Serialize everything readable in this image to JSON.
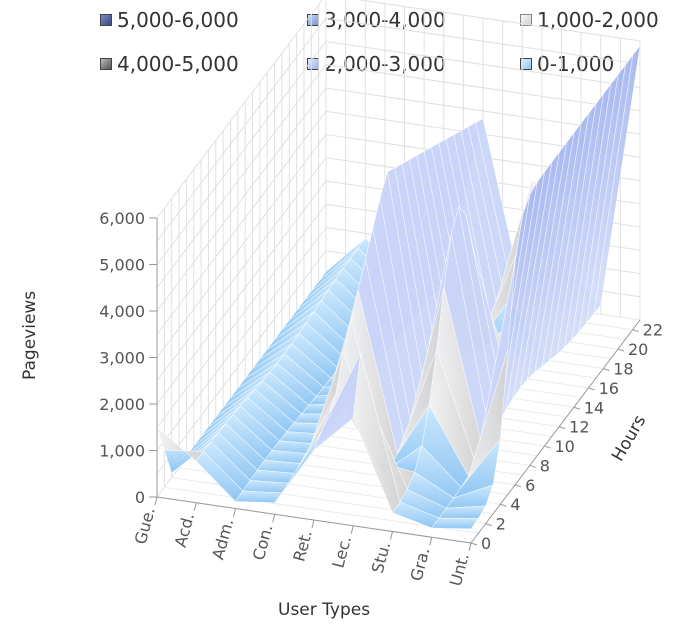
{
  "chart_data": {
    "type": "surface-3d",
    "title": "",
    "xlabel": "User Types",
    "ylabel": "Pageviews",
    "zlabel": "Hours",
    "user_types": [
      "Gue.",
      "Acd.",
      "Adm.",
      "Con.",
      "Ret.",
      "Lec.",
      "Stu.",
      "Gra.",
      "Unt."
    ],
    "hour_ticks": [
      "0",
      "2",
      "4",
      "6",
      "8",
      "10",
      "12",
      "14",
      "16",
      "18",
      "20",
      "22"
    ],
    "pageview_ticks": [
      "0",
      "1,000",
      "2,000",
      "3,000",
      "4,000",
      "5,000",
      "6,000"
    ],
    "pageview_range": [
      0,
      6000
    ],
    "hour_range": [
      0,
      23
    ],
    "legend": [
      {
        "label": "5,000-6,000",
        "color": "#4a5a8c"
      },
      {
        "label": "3,000-4,000",
        "color": "#9db4e8"
      },
      {
        "label": "1,000-2,000",
        "color": "#e6e6e6"
      },
      {
        "label": "4,000-5,000",
        "color": "#888888"
      },
      {
        "label": "2,000-3,000",
        "color": "#c0cdf6"
      },
      {
        "label": "0-1,000",
        "color": "#b7dcfb"
      }
    ],
    "peak_pageviews_approx": {
      "Gue.": 1500,
      "Acd.": 1000,
      "Adm.": 100,
      "Con.": 300,
      "Ret.": 5500,
      "Lec.": 3500,
      "Stu.": 5300,
      "Gra.": 700,
      "Unt.": 5900
    },
    "grid": true
  }
}
